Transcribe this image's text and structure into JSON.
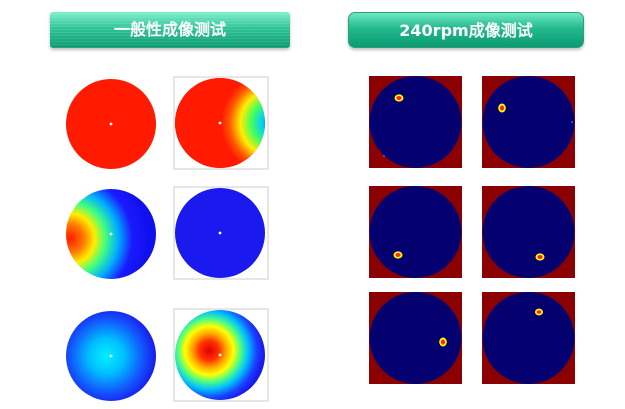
{
  "headers": {
    "left": "一般性成像测试",
    "right": "240rpm成像测试"
  },
  "colors": {
    "header_green": "#23b98d",
    "hot_red": "#ff1a00",
    "cold_blue": "#1010ee",
    "dark_navy": "#05006f",
    "dark_red": "#8b0000"
  },
  "left_panel": {
    "tiles": [
      "uniform-red",
      "red-with-right-edge-gradient",
      "blue-with-left-hotspot",
      "uniform-blue",
      "cyan-center-gradient",
      "red-center-hotspot"
    ]
  },
  "right_panel": {
    "tiles": [
      "spot-top-left",
      "spot-top-center",
      "spot-lower-left",
      "spot-lower-right",
      "spot-right",
      "spot-top-right"
    ]
  }
}
